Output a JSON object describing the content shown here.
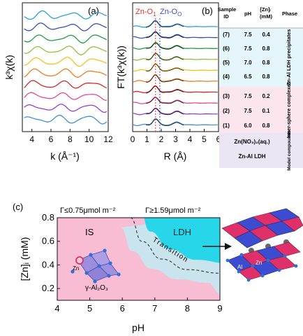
{
  "chart_data": [
    {
      "panel": "(a)",
      "type": "line",
      "xlabel": "k (Å⁻¹)",
      "ylabel": "k³χ(k)",
      "xlim": [
        3,
        12
      ],
      "x_ticks": [
        "4",
        "6",
        "8",
        "10",
        "12"
      ],
      "series": [
        {
          "color": "#2a9fd6",
          "freq": 1.05,
          "phase": 0.2
        },
        {
          "color": "#3b4fb8",
          "freq": 1.05,
          "phase": 0.5
        },
        {
          "color": "#1e9e3e",
          "freq": 1.05,
          "phase": 0.8
        },
        {
          "color": "#8fc23b",
          "freq": 1.05,
          "phase": 1.1
        },
        {
          "color": "#f4c21a",
          "freq": 1.05,
          "phase": 1.4
        },
        {
          "color": "#f07c1c",
          "freq": 1.05,
          "phase": 1.7
        },
        {
          "color": "#d62728",
          "freq": 1.05,
          "phase": 2.0
        },
        {
          "color": "#e8488a",
          "freq": 1.05,
          "phase": 2.3
        },
        {
          "color": "#9b3fc8",
          "freq": 1.05,
          "phase": 2.6
        },
        {
          "color": "#3f8fd6",
          "freq": 1.05,
          "phase": 2.9
        }
      ]
    },
    {
      "panel": "(b)",
      "type": "line",
      "xlabel": "R (Å)",
      "ylabel": "FT(k³χ(k))",
      "xlim": [
        0,
        6
      ],
      "x_ticks": [
        "0",
        "1",
        "2",
        "3",
        "4",
        "5",
        "6"
      ],
      "annotations": [
        {
          "text": "Zn-O",
          "sub": "1",
          "color": "#e0312f",
          "x": 1.6
        },
        {
          "text": "Zn-O",
          "sub": "O",
          "color": "#3a4ccf",
          "x": 1.9
        }
      ],
      "peak_positions": [
        1.6,
        3.1
      ],
      "series_colors": [
        "#2a9fd6",
        "#3b4fb8",
        "#1e9e3e",
        "#8fc23b",
        "#f4c21a",
        "#f07c1c",
        "#d62728",
        "#e8488a",
        "#9b3fc8",
        "#3f8fd6"
      ]
    },
    {
      "type": "table",
      "columns": [
        "Sample ID",
        "pH",
        "[Zn]ᵢ (mM)",
        "Phase"
      ],
      "groups": [
        {
          "phase": "Zn-Al LDH precipitates",
          "color": "#e5f6fb",
          "rows": [
            [
              "(7)",
              "7.5",
              "0.4"
            ],
            [
              "(6)",
              "7.5",
              "0.8"
            ],
            [
              "(5)",
              "7.0",
              "0.8"
            ],
            [
              "(4)",
              "6.5",
              "0.8"
            ]
          ]
        },
        {
          "phase": "Inner-sphere complexes",
          "color": "#fbe6ee",
          "rows": [
            [
              "(3)",
              "7.5",
              "0.2"
            ],
            [
              "(2)",
              "7.5",
              "0.1"
            ],
            [
              "(1)",
              "6.0",
              "0.8"
            ]
          ]
        },
        {
          "phase": "Model compounds",
          "color": "#ece6f4",
          "rows": [
            [
              "Zn(NO₃)₂(aq.)"
            ],
            [
              "Zn-Al LDH"
            ]
          ]
        }
      ]
    },
    {
      "panel": "(c)",
      "type": "area",
      "xlabel": "pH",
      "ylabel": "[Zn]ᵢ (mM)",
      "xlim": [
        4,
        9
      ],
      "ylim": [
        0.1,
        0.8
      ],
      "x_ticks": [
        "4",
        "5",
        "6",
        "7",
        "8",
        "9"
      ],
      "y_ticks": [
        "0.2",
        "0.4",
        "0.6",
        "0.8"
      ],
      "header_left": "Γ≤0.75μmol m⁻²",
      "header_right": "Γ≥1.59μmol m⁻²",
      "regions": [
        {
          "label": "IS",
          "color": "#f8bcd3"
        },
        {
          "label": "LDH",
          "color": "#28d6ea"
        },
        {
          "label": "Transition",
          "color": "#c9e4ec"
        }
      ],
      "transition_curve": [
        [
          6.25,
          0.8
        ],
        [
          6.6,
          0.6
        ],
        [
          7.2,
          0.45
        ],
        [
          8.0,
          0.36
        ],
        [
          9.0,
          0.33
        ]
      ],
      "inset_labels": [
        "Zn",
        "γ-Al₂O₃"
      ],
      "ldh_labels": [
        "Al",
        "Zn"
      ],
      "colors": {
        "ldh_red": "#e0306a",
        "ldh_blue": "#3b4cd0",
        "oxygen": "#2f6fd8",
        "arrow": "#111111"
      }
    }
  ]
}
